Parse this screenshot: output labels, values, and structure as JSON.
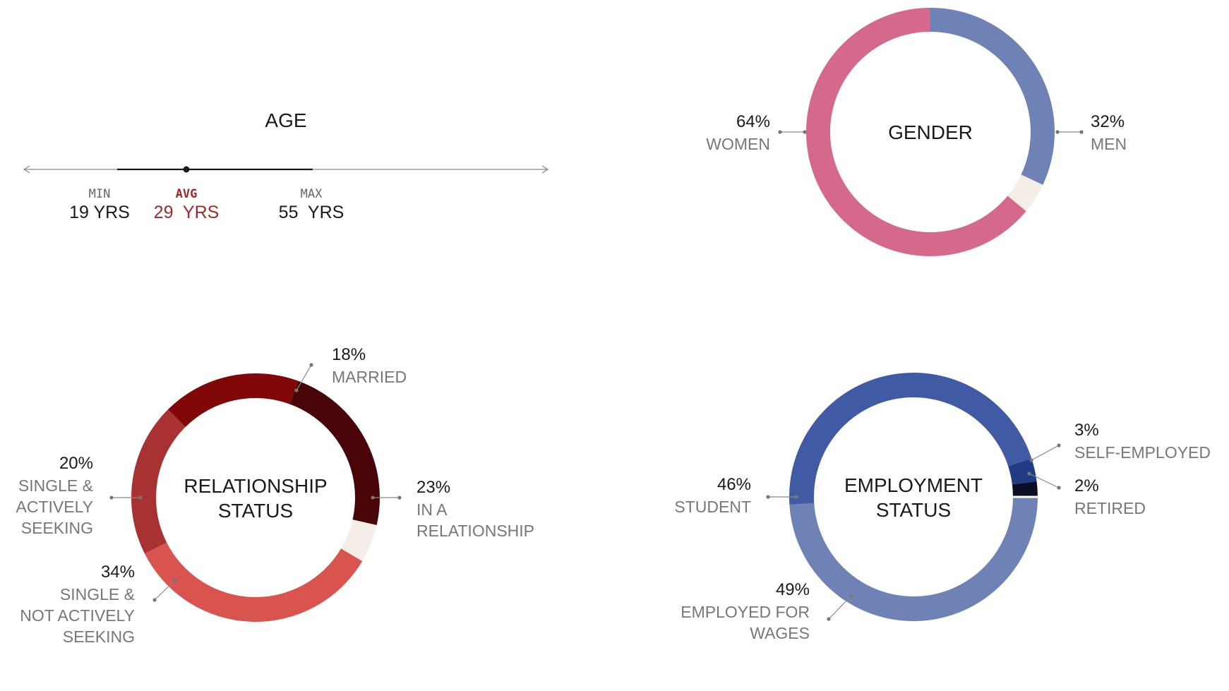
{
  "colors": {
    "accent_red": "#a32a2a",
    "rest": "#f5ede8",
    "text": "#1a1a1a",
    "muted": "#777777",
    "leader": "#888888"
  },
  "age": {
    "title": "AGE",
    "min": {
      "label": "MIN",
      "value": "19 YRS",
      "years": 19
    },
    "avg": {
      "label": "AVG",
      "value": "29  YRS",
      "years": 29
    },
    "max": {
      "label": "MAX",
      "value": "55  YRS",
      "years": 55
    }
  },
  "chart_data": [
    {
      "type": "pie",
      "title": "GENDER",
      "slices": [
        {
          "pct": "32%",
          "label": "MEN",
          "value": 32,
          "color": "#6e82b5"
        },
        {
          "pct": "",
          "label": "",
          "value": 4,
          "color": "#f5ede8"
        },
        {
          "pct": "64%",
          "label": "WOMEN",
          "value": 64,
          "color": "#d4698b"
        }
      ]
    },
    {
      "type": "pie",
      "title": "RELATIONSHIP\nSTATUS",
      "slices": [
        {
          "pct": "23%",
          "label": "IN A\nRELATIONSHIP",
          "value": 23,
          "color": "#4a0508"
        },
        {
          "pct": "",
          "label": "",
          "value": 5,
          "color": "#f5ede8"
        },
        {
          "pct": "34%",
          "label": "SINGLE &\nNOT ACTIVELY\nSEEKING",
          "value": 34,
          "color": "#d9534f"
        },
        {
          "pct": "20%",
          "label": "SINGLE &\nACTIVELY\nSEEKING",
          "value": 20,
          "color": "#a83232"
        },
        {
          "pct": "18%",
          "label": "MARRIED",
          "value": 18,
          "color": "#800808"
        }
      ]
    },
    {
      "type": "pie",
      "title": "EMPLOYMENT\nSTATUS",
      "slices": [
        {
          "pct": "49%",
          "label": "EMPLOYED FOR\nWAGES",
          "value": 49,
          "color": "#6e82b5"
        },
        {
          "pct": "46%",
          "label": "STUDENT",
          "value": 46,
          "color": "#405aa3"
        },
        {
          "pct": "3%",
          "label": "SELF-EMPLOYED",
          "value": 3,
          "color": "#213b85"
        },
        {
          "pct": "2%",
          "label": "RETIRED",
          "value": 2,
          "color": "#0b0f26"
        }
      ]
    }
  ]
}
